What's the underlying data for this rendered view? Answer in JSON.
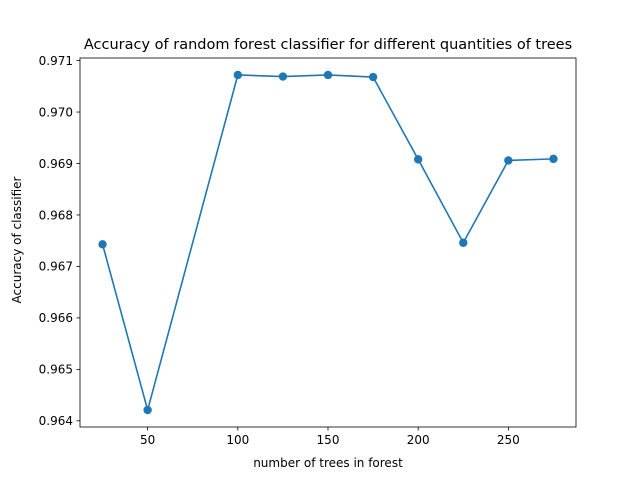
{
  "chart_data": {
    "type": "line",
    "title": "Accuracy of random forest classifier for different quantities of trees",
    "xlabel": "number of trees in forest",
    "ylabel": "Accuracy of classifier",
    "x": [
      25,
      50,
      100,
      125,
      150,
      175,
      200,
      225,
      250,
      275
    ],
    "series": [
      {
        "values": [
          0.96743,
          0.96421,
          0.97072,
          0.97069,
          0.97072,
          0.97068,
          0.96908,
          0.96746,
          0.96906,
          0.96909
        ],
        "color": "#1f77b4",
        "marker": "circle"
      }
    ],
    "xlim": [
      12.5,
      287.5
    ],
    "ylim": [
      0.96388,
      0.97105
    ],
    "xticks": [
      50,
      100,
      150,
      200,
      250
    ],
    "yticks": [
      0.964,
      0.965,
      0.966,
      0.967,
      0.968,
      0.969,
      0.97,
      0.971
    ],
    "ytick_labels": [
      "0.964",
      "0.965",
      "0.966",
      "0.967",
      "0.968",
      "0.969",
      "0.970",
      "0.971"
    ],
    "grid": false,
    "legend": "none"
  }
}
